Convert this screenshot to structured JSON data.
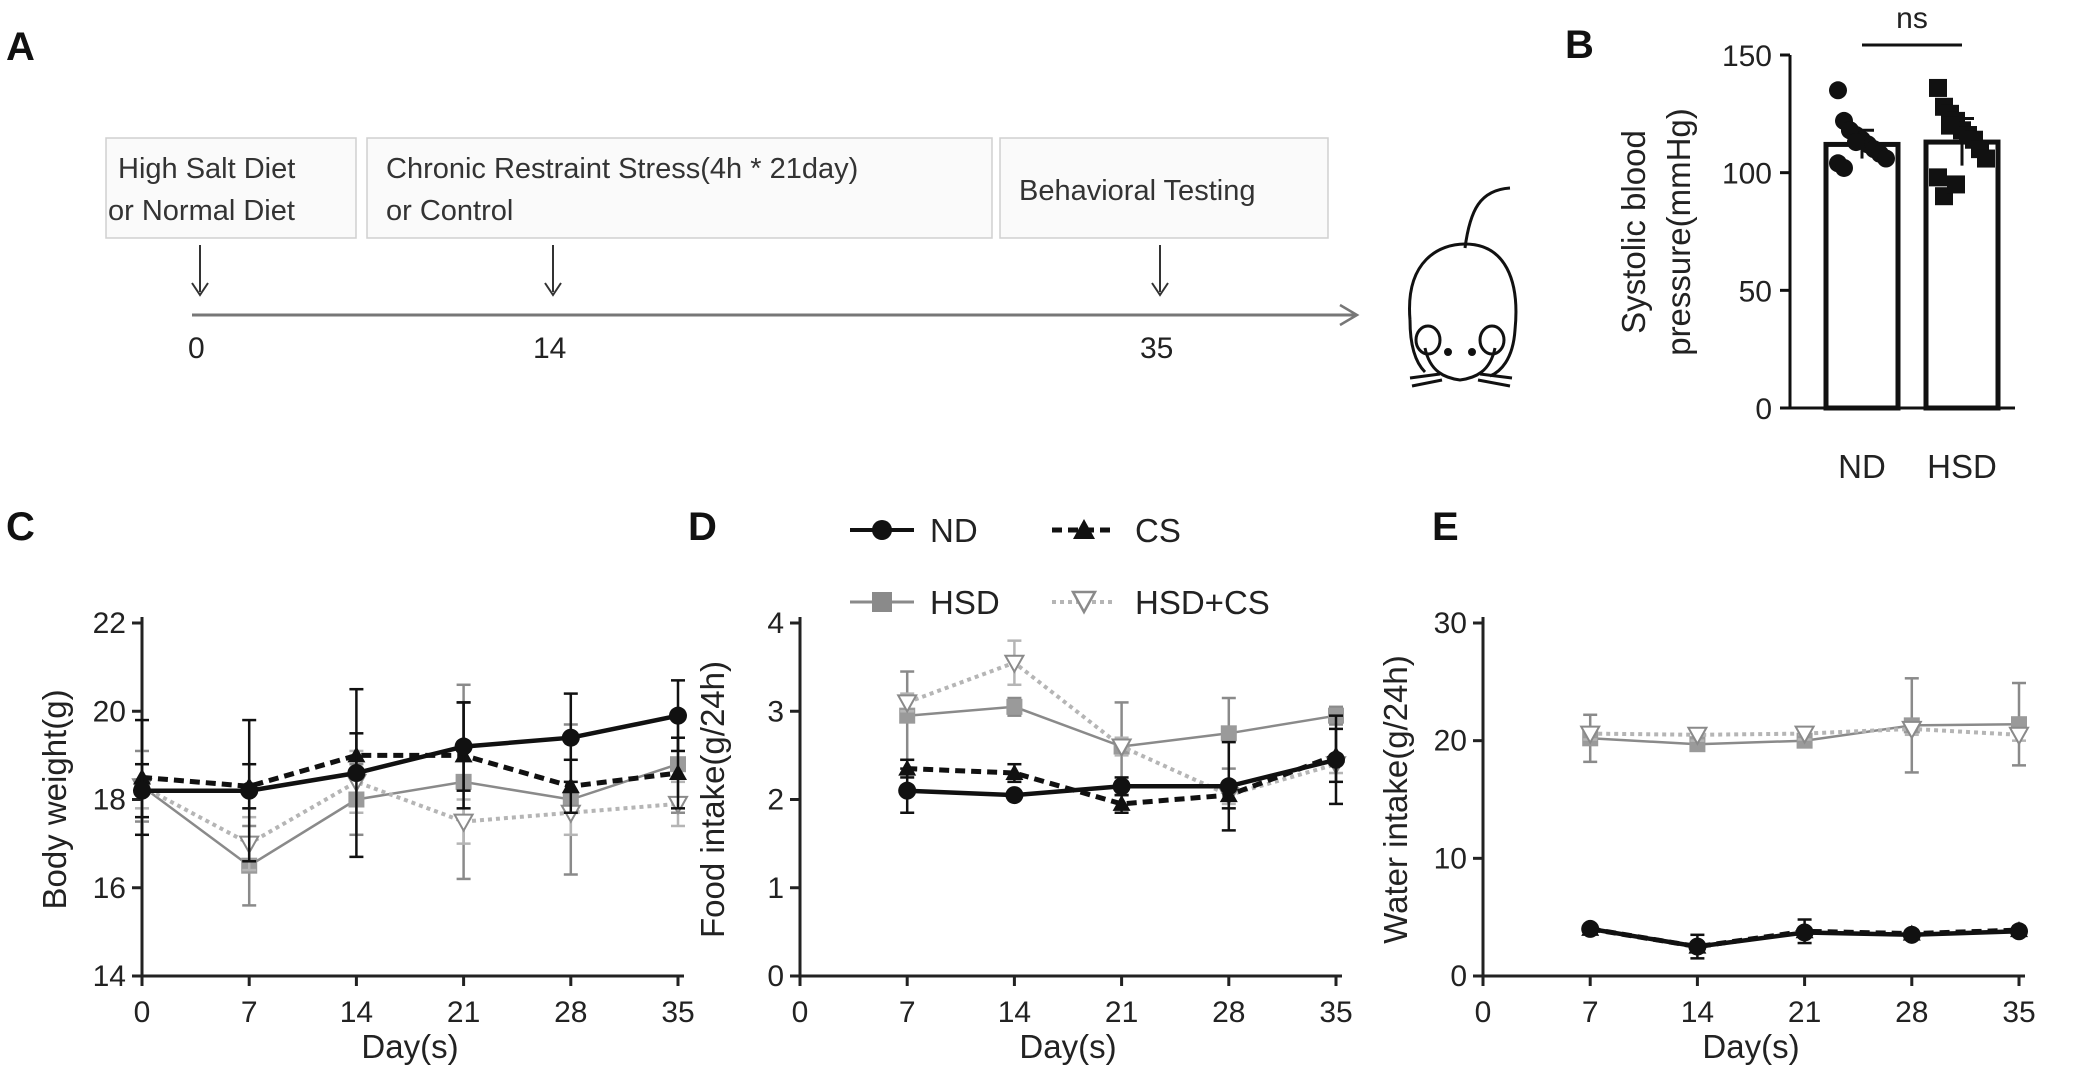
{
  "panels": {
    "A": {
      "letter": "A",
      "timeline": {
        "box1_line1": "High Salt Diet",
        "box1_line2": "or Normal Diet",
        "box2_line1": "Chronic Restraint Stress(4h * 21day)",
        "box2_line2": "or Control",
        "box3": "Behavioral Testing",
        "ticks": [
          "0",
          "14",
          "35"
        ]
      }
    },
    "B": {
      "letter": "B",
      "significance": "ns"
    },
    "C": {
      "letter": "C"
    },
    "D": {
      "letter": "D"
    },
    "E": {
      "letter": "E"
    }
  },
  "legend": {
    "nd": "ND",
    "cs": "CS",
    "hsd": "HSD",
    "hsd_cs": "HSD+CS"
  },
  "colors": {
    "black": "#111111",
    "gray": "#8a8a8a",
    "light": "#b5b5b5"
  },
  "chart_data": [
    {
      "id": "B",
      "type": "bar",
      "categories": [
        "ND",
        "HSD"
      ],
      "values": [
        112,
        113
      ],
      "errors": [
        6,
        10
      ],
      "points": [
        [
          135,
          122,
          118,
          116,
          114,
          112,
          110,
          108,
          106,
          104,
          102,
          118,
          113
        ],
        [
          136,
          128,
          125,
          122,
          118,
          116,
          114,
          110,
          106,
          98,
          90,
          120,
          95
        ]
      ],
      "ylabel_line1": "Systolic blood",
      "ylabel_line2": "pressure(mmHg)",
      "ylim": [
        0,
        150
      ],
      "yticks": [
        "0",
        "50",
        "100",
        "150"
      ],
      "annotation": "ns"
    },
    {
      "id": "C",
      "type": "line",
      "x": [
        0,
        7,
        14,
        21,
        28,
        35
      ],
      "xticks": [
        "0",
        "7",
        "14",
        "21",
        "28",
        "35"
      ],
      "xlabel": "Day(s)",
      "ylabel": "Body weight(g)",
      "ylim": [
        14,
        22
      ],
      "yticks": [
        "14",
        "16",
        "18",
        "20",
        "22"
      ],
      "series": [
        {
          "name": "ND",
          "values": [
            18.2,
            18.2,
            18.6,
            19.2,
            19.4,
            19.9
          ],
          "errors": [
            0.6,
            1.6,
            1.9,
            1.0,
            1.0,
            0.8
          ]
        },
        {
          "name": "CS",
          "values": [
            18.5,
            18.3,
            19.0,
            19.0,
            18.3,
            18.6
          ],
          "errors": [
            1.3,
            0.5,
            0.5,
            1.2,
            0.6,
            0.8
          ]
        },
        {
          "name": "HSD",
          "values": [
            18.3,
            16.5,
            18.0,
            18.4,
            18.0,
            18.8
          ],
          "errors": [
            0.8,
            0.9,
            0.8,
            2.2,
            1.7,
            1.1
          ]
        },
        {
          "name": "HSD+CS",
          "values": [
            18.3,
            17.0,
            18.4,
            17.5,
            17.7,
            17.9
          ],
          "errors": [
            0.5,
            0.6,
            0.7,
            0.5,
            0.5,
            0.5
          ]
        }
      ]
    },
    {
      "id": "D",
      "type": "line",
      "x": [
        7,
        14,
        21,
        28,
        35
      ],
      "xdomain": [
        0,
        35
      ],
      "xticks": [
        "0",
        "7",
        "14",
        "21",
        "28",
        "35"
      ],
      "xlabel": "Day(s)",
      "ylabel": "Food intake(g/24h)",
      "ylim": [
        0,
        4
      ],
      "yticks": [
        "0",
        "1",
        "2",
        "3",
        "4"
      ],
      "series": [
        {
          "name": "ND",
          "values": [
            2.1,
            2.05,
            2.15,
            2.15,
            2.45
          ],
          "errors": [
            0.25,
            0.05,
            0.1,
            0.5,
            0.5
          ]
        },
        {
          "name": "CS",
          "values": [
            2.35,
            2.3,
            1.95,
            2.05,
            2.5
          ],
          "errors": [
            0.1,
            0.1,
            0.1,
            0.15,
            0.3
          ]
        },
        {
          "name": "HSD",
          "values": [
            2.95,
            3.05,
            2.6,
            2.75,
            2.95
          ],
          "errors": [
            0.5,
            0.1,
            0.5,
            0.4,
            0.1
          ]
        },
        {
          "name": "HSD+CS",
          "values": [
            3.1,
            3.55,
            2.6,
            2.05,
            2.4
          ],
          "errors": [
            0.1,
            0.25,
            0.1,
            0.1,
            0.1
          ]
        }
      ]
    },
    {
      "id": "E",
      "type": "line",
      "x": [
        7,
        14,
        21,
        28,
        35
      ],
      "xdomain": [
        0,
        35
      ],
      "xticks": [
        "0",
        "7",
        "14",
        "21",
        "28",
        "35"
      ],
      "xlabel": "Day(s)",
      "ylabel": "Water intake(g/24h)",
      "ylim": [
        0,
        30
      ],
      "yticks": [
        "0",
        "10",
        "20",
        "30"
      ],
      "series": [
        {
          "name": "ND",
          "values": [
            4.0,
            2.5,
            3.7,
            3.5,
            3.8
          ],
          "errors": [
            0.3,
            0.3,
            0.3,
            0.3,
            0.3
          ]
        },
        {
          "name": "CS",
          "values": [
            4.0,
            2.5,
            3.8,
            3.6,
            3.9
          ],
          "errors": [
            0.3,
            1.0,
            1.0,
            0.3,
            0.3
          ]
        },
        {
          "name": "HSD",
          "values": [
            20.2,
            19.7,
            20.0,
            21.3,
            21.4
          ],
          "errors": [
            2.0,
            0.5,
            0.5,
            4.0,
            3.5
          ]
        },
        {
          "name": "HSD+CS",
          "values": [
            20.6,
            20.5,
            20.6,
            21.0,
            20.5
          ],
          "errors": [
            0.5,
            0.5,
            0.5,
            0.5,
            0.5
          ]
        }
      ]
    }
  ]
}
